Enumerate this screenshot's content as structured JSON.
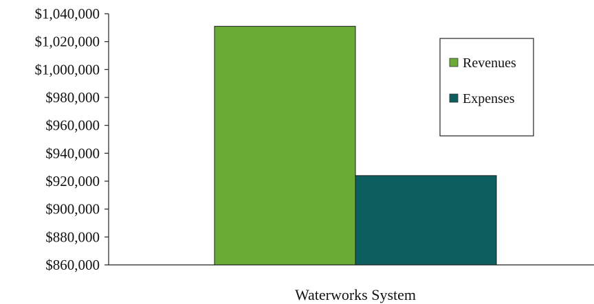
{
  "chart_data": {
    "type": "bar",
    "categories": [
      "Waterworks System"
    ],
    "series": [
      {
        "name": "Revenues",
        "values": [
          1031000
        ],
        "color": "#6aab35"
      },
      {
        "name": "Expenses",
        "values": [
          924000
        ],
        "color": "#0d5e5e"
      }
    ],
    "ylim": [
      860000,
      1040000
    ],
    "yticks": [
      860000,
      880000,
      900000,
      920000,
      940000,
      960000,
      980000,
      1000000,
      1020000,
      1040000
    ],
    "ytick_labels": [
      "$860,000",
      "$880,000",
      "$900,000",
      "$920,000",
      "$940,000",
      "$960,000",
      "$980,000",
      "$1,000,000",
      "$1,020,000",
      "$1,040,000"
    ],
    "title": "",
    "xlabel": "",
    "ylabel": "",
    "grid": false,
    "legend": "right"
  }
}
